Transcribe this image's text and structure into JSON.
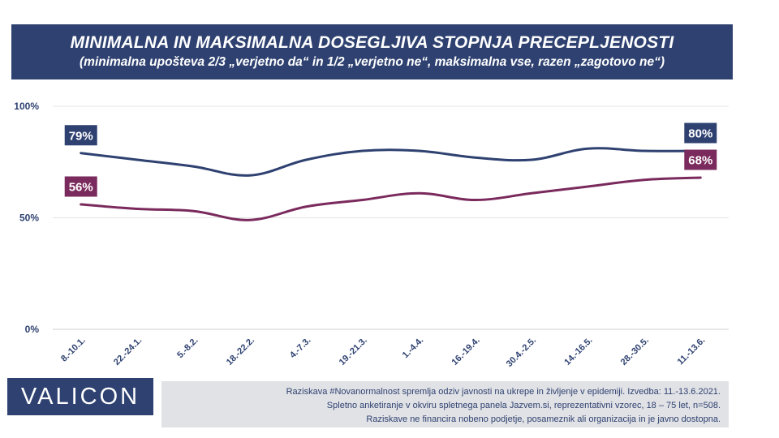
{
  "title": {
    "main": "MINIMALNA IN MAKSIMALNA DOSEGLJIVA STOPNJA PRECEPLJENOSTI",
    "sub": "(minimalna upošteva 2/3 „verjetno da“ in 1/2 „verjetno ne“, maksimalna vse, razen „zagotovo ne“)"
  },
  "chart_data": {
    "type": "line",
    "title": "MINIMALNA IN MAKSIMALNA DOSEGLJIVA STOPNJA PRECEPLJENOSTI",
    "categories": [
      "8.-10.1.",
      "22.-24.1.",
      "5.-8.2.",
      "18.-22.2.",
      "4.-7.3.",
      "19.-21.3.",
      "1.-4.4.",
      "16.-19.4.",
      "30.4.-2.5.",
      "14.-16.5.",
      "28.-30.5.",
      "11.-13.6."
    ],
    "series": [
      {
        "values": [
          79,
          76,
          73,
          69,
          76,
          80,
          80,
          77,
          76,
          81,
          80,
          80
        ],
        "color": "#2e4170",
        "label_first": "79%",
        "label_last": "80%"
      },
      {
        "values": [
          56,
          54,
          53,
          49,
          55,
          58,
          61,
          58,
          61,
          64,
          67,
          68
        ],
        "color": "#7a2a5c",
        "label_first": "56%",
        "label_last": "68%"
      }
    ],
    "y_ticks": [
      "0%",
      "50%",
      "100%"
    ],
    "ylim": [
      0,
      100
    ],
    "grid": true,
    "legend": "none"
  },
  "logo": {
    "text": "VALICON"
  },
  "footnote": {
    "line1": "Raziskava #Novanormalnost spremlja odziv javnosti na ukrepe in življenje v epidemiji. Izvedba: 11.-13.6.2021.",
    "line2": "Spletno anketiranje v okviru spletnega panela Jazvem.si, reprezentativni vzorec, 18 – 75 let, n=508.",
    "line3": "Raziskave ne financira nobeno podjetje, posameznik ali organizacija in je javno dostopna."
  }
}
